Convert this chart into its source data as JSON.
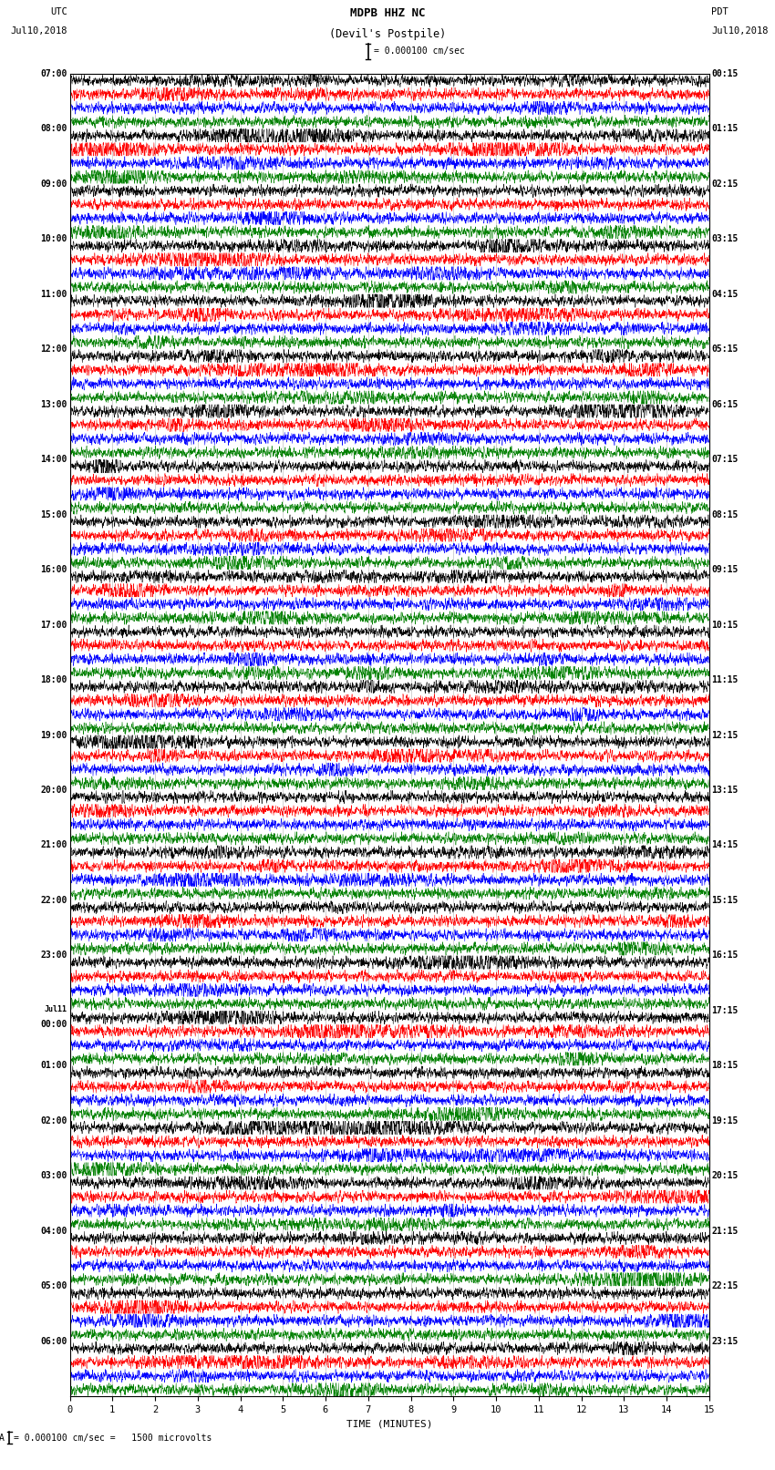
{
  "title_line1": "MDPB HHZ NC",
  "title_line2": "(Devil's Postpile)",
  "scale_text": "= 0.000100 cm/sec",
  "left_header_line1": "UTC",
  "left_header_line2": "Jul10,2018",
  "right_header_line1": "PDT",
  "right_header_line2": "Jul10,2018",
  "bottom_label": "TIME (MINUTES)",
  "bottom_note": "= 0.000100 cm/sec =   1500 microvolts",
  "trace_colors": [
    "black",
    "red",
    "blue",
    "green"
  ],
  "x_ticks": [
    0,
    1,
    2,
    3,
    4,
    5,
    6,
    7,
    8,
    9,
    10,
    11,
    12,
    13,
    14,
    15
  ],
  "left_times": [
    "07:00",
    "",
    "",
    "",
    "08:00",
    "",
    "",
    "",
    "09:00",
    "",
    "",
    "",
    "10:00",
    "",
    "",
    "",
    "11:00",
    "",
    "",
    "",
    "12:00",
    "",
    "",
    "",
    "13:00",
    "",
    "",
    "",
    "14:00",
    "",
    "",
    "",
    "15:00",
    "",
    "",
    "",
    "16:00",
    "",
    "",
    "",
    "17:00",
    "",
    "",
    "",
    "18:00",
    "",
    "",
    "",
    "19:00",
    "",
    "",
    "",
    "20:00",
    "",
    "",
    "",
    "21:00",
    "",
    "",
    "",
    "22:00",
    "",
    "",
    "",
    "23:00",
    "",
    "",
    "",
    "Jul11",
    "00:00",
    "",
    "",
    "01:00",
    "",
    "",
    "",
    "02:00",
    "",
    "",
    "",
    "03:00",
    "",
    "",
    "",
    "04:00",
    "",
    "",
    "",
    "05:00",
    "",
    "",
    "",
    "06:00",
    "",
    "",
    ""
  ],
  "right_times": [
    "00:15",
    "",
    "",
    "",
    "01:15",
    "",
    "",
    "",
    "02:15",
    "",
    "",
    "",
    "03:15",
    "",
    "",
    "",
    "04:15",
    "",
    "",
    "",
    "05:15",
    "",
    "",
    "",
    "06:15",
    "",
    "",
    "",
    "07:15",
    "",
    "",
    "",
    "08:15",
    "",
    "",
    "",
    "09:15",
    "",
    "",
    "",
    "10:15",
    "",
    "",
    "",
    "11:15",
    "",
    "",
    "",
    "12:15",
    "",
    "",
    "",
    "13:15",
    "",
    "",
    "",
    "14:15",
    "",
    "",
    "",
    "15:15",
    "",
    "",
    "",
    "16:15",
    "",
    "",
    "",
    "17:15",
    "",
    "",
    "",
    "18:15",
    "",
    "",
    "",
    "19:15",
    "",
    "",
    "",
    "20:15",
    "",
    "",
    "",
    "21:15",
    "",
    "",
    "",
    "22:15",
    "",
    "",
    "",
    "23:15",
    "",
    "",
    ""
  ],
  "n_rows": 96,
  "fig_width": 8.5,
  "fig_height": 16.13,
  "bg_color": "white",
  "seed": 42
}
